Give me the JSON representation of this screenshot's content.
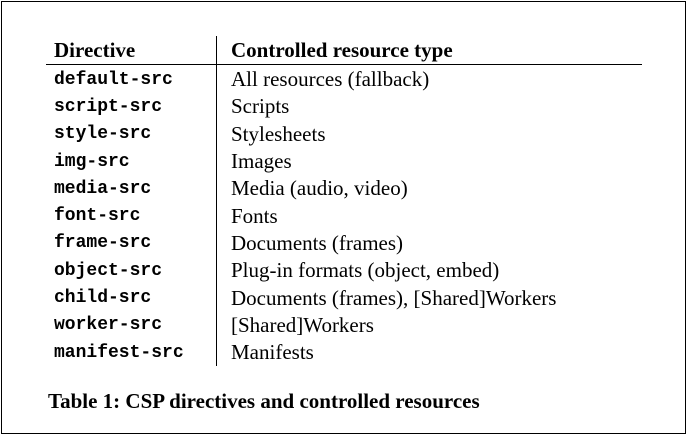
{
  "table": {
    "headers": [
      "Directive",
      "Controlled resource type"
    ],
    "rows": [
      {
        "directive": "default-src",
        "type": "All resources (fallback)"
      },
      {
        "directive": "script-src",
        "type": "Scripts"
      },
      {
        "directive": "style-src",
        "type": "Stylesheets"
      },
      {
        "directive": "img-src",
        "type": "Images"
      },
      {
        "directive": "media-src",
        "type": "Media (audio, video)"
      },
      {
        "directive": "font-src",
        "type": "Fonts"
      },
      {
        "directive": "frame-src",
        "type": "Documents (frames)"
      },
      {
        "directive": "object-src",
        "type": "Plug-in formats (object, embed)"
      },
      {
        "directive": "child-src",
        "type": "Documents (frames), [Shared]Workers"
      },
      {
        "directive": "worker-src",
        "type": "[Shared]Workers"
      },
      {
        "directive": "manifest-src",
        "type": "Manifests"
      }
    ]
  },
  "caption": "Table 1: CSP directives and controlled resources"
}
